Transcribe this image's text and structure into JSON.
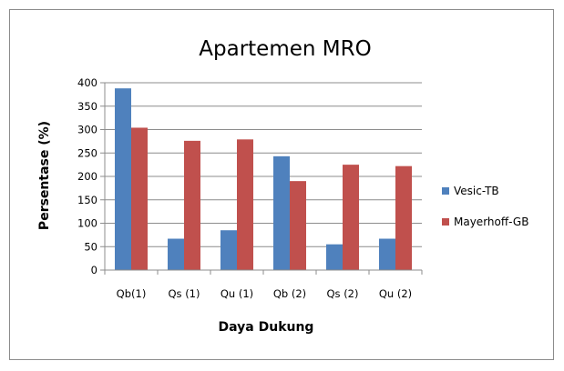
{
  "chart_data": {
    "type": "bar",
    "title": "Apartemen MRO",
    "xlabel": "Daya Dukung",
    "ylabel": "Persentase (%)",
    "categories": [
      "Qb(1)",
      "Qs (1)",
      "Qu (1)",
      "Qb (2)",
      "Qs (2)",
      "Qu (2)"
    ],
    "series": [
      {
        "name": "Vesic-TB",
        "color": "#4f81bd",
        "values": [
          388,
          67,
          85,
          243,
          55,
          67
        ]
      },
      {
        "name": "Mayerhoff-GB",
        "color": "#c0504d",
        "values": [
          304,
          276,
          279,
          190,
          225,
          222
        ]
      }
    ],
    "ylim": [
      0,
      400
    ],
    "yticks": [
      0,
      50,
      100,
      150,
      200,
      250,
      300,
      350,
      400
    ],
    "grid": true,
    "legend_position": "right"
  }
}
